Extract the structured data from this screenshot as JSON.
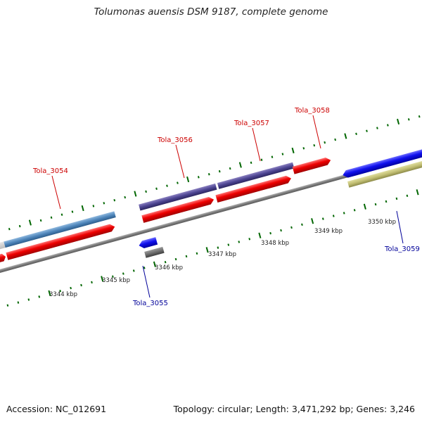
{
  "title": "Tolumonas auensis DSM 9187, complete genome",
  "footer": {
    "accession": "Accession: NC_012691",
    "topology": "Topology: circular; Length: 3,471,292 bp; Genes: 3,246"
  },
  "colors": {
    "forward_label": "#cc0000",
    "reverse_label": "#000099",
    "tick": "#006600",
    "backbone": "#888888"
  },
  "scale_labels": [
    "3344 kbp",
    "3345 kbp",
    "3346 kbp",
    "3347 kbp",
    "3348 kbp",
    "3349 kbp",
    "3350 kbp"
  ],
  "genes": [
    {
      "name": "Tola_3054",
      "strand": "forward"
    },
    {
      "name": "Tola_3055",
      "strand": "reverse"
    },
    {
      "name": "Tola_3056",
      "strand": "forward"
    },
    {
      "name": "Tola_3057",
      "strand": "forward"
    },
    {
      "name": "Tola_3058",
      "strand": "forward"
    },
    {
      "name": "Tola_3059",
      "strand": "reverse"
    }
  ]
}
